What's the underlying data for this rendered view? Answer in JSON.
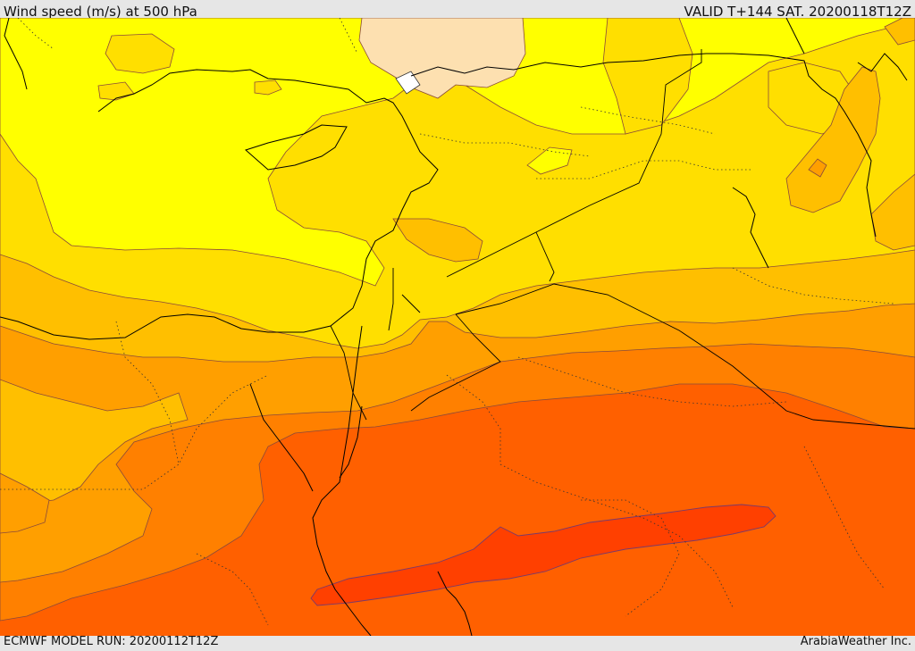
{
  "header": {
    "title": "Wind speed (m/s) at 500 hPa",
    "valid": "VALID T+144 SAT. 20200118T12Z"
  },
  "footer": {
    "model_run": "ECMWF MODEL RUN: 20200112T12Z",
    "credit": "ArabiaWeather Inc."
  },
  "colors": {
    "band_light": "#fde0b0",
    "band_pale_yellow": "#ffff00",
    "band_yellow": "#ffdf00",
    "band_amber": "#ffbf00",
    "band_orange": "#ff9f00",
    "band_dark_orange": "#ff8000",
    "band_red_orange": "#ff6000",
    "band_red": "#ff4000",
    "coast": "#000000",
    "border": "#000000"
  }
}
